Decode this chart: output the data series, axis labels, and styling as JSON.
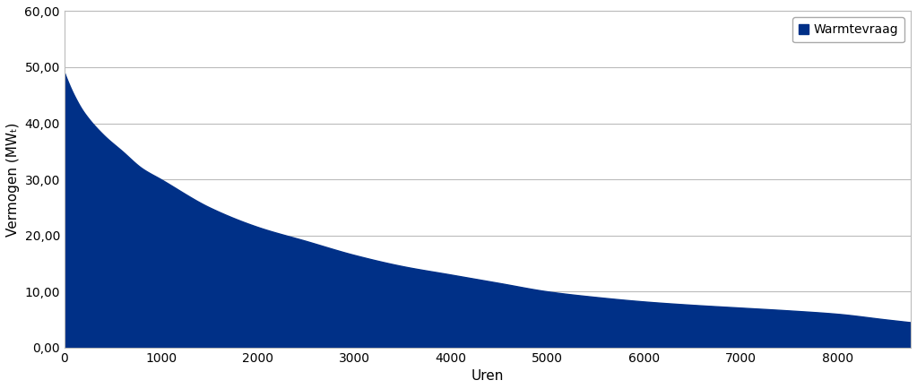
{
  "title": "",
  "xlabel": "Uren",
  "ylabel": "Vermogen (MWₜ)",
  "xlim": [
    0,
    8760
  ],
  "ylim": [
    0,
    60
  ],
  "xticks": [
    0,
    1000,
    2000,
    3000,
    4000,
    5000,
    6000,
    7000,
    8000
  ],
  "yticks": [
    0.0,
    10.0,
    20.0,
    30.0,
    40.0,
    50.0,
    60.0
  ],
  "fill_color": "#003087",
  "fill_label": "Warmtevraag",
  "curve_points_x": [
    0,
    100,
    200,
    400,
    600,
    800,
    1000,
    1500,
    2000,
    2500,
    3000,
    3500,
    4000,
    4500,
    5000,
    5500,
    6000,
    6500,
    7000,
    7500,
    8000,
    8500,
    8760
  ],
  "curve_points_y": [
    49.0,
    45.0,
    42.0,
    38.0,
    35.0,
    32.0,
    30.0,
    25.0,
    21.5,
    19.0,
    16.5,
    14.5,
    13.0,
    11.5,
    10.0,
    9.0,
    8.2,
    7.6,
    7.1,
    6.6,
    6.0,
    5.0,
    4.5
  ],
  "background_color": "#ffffff",
  "grid_color": "#bbbbbb",
  "legend_fontsize": 10,
  "axis_fontsize": 11,
  "tick_fontsize": 10
}
